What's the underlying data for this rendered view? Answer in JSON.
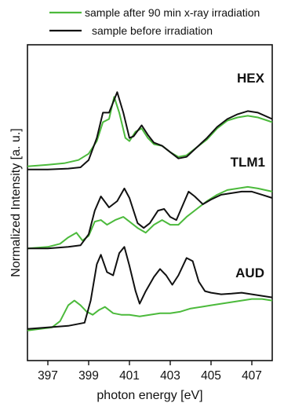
{
  "legend": [
    {
      "label": "sample after 90 min x-ray irradiation",
      "color": "#4cba3c"
    },
    {
      "label": "sample before irradiation",
      "color": "#111111"
    }
  ],
  "chart_data": {
    "type": "line",
    "title": "",
    "xlabel": "photon energy [eV]",
    "ylabel": "Normalized Intensity [a. u.]",
    "xlim": [
      396.0,
      408.0
    ],
    "xticks": [
      397,
      399,
      401,
      403,
      405,
      407
    ],
    "ylim": [
      0,
      10
    ],
    "yticks_shown": false,
    "panels": [
      {
        "name": "HEX",
        "series": [
          {
            "name": "sample after 90 min x-ray irradiation",
            "color": "#4cba3c",
            "points": [
              [
                396.0,
                6.15
              ],
              [
                397.0,
                6.2
              ],
              [
                397.8,
                6.25
              ],
              [
                398.5,
                6.35
              ],
              [
                399.0,
                6.55
              ],
              [
                399.4,
                6.95
              ],
              [
                399.7,
                7.55
              ],
              [
                400.0,
                7.65
              ],
              [
                400.25,
                8.35
              ],
              [
                400.5,
                7.85
              ],
              [
                400.8,
                7.05
              ],
              [
                401.0,
                6.95
              ],
              [
                401.3,
                7.25
              ],
              [
                401.6,
                7.35
              ],
              [
                401.9,
                7.05
              ],
              [
                402.2,
                6.85
              ],
              [
                402.6,
                6.8
              ],
              [
                403.0,
                6.6
              ],
              [
                403.4,
                6.45
              ],
              [
                403.8,
                6.5
              ],
              [
                404.3,
                6.75
              ],
              [
                404.8,
                7.0
              ],
              [
                405.3,
                7.35
              ],
              [
                405.8,
                7.6
              ],
              [
                406.3,
                7.7
              ],
              [
                406.8,
                7.75
              ],
              [
                407.3,
                7.7
              ],
              [
                408.0,
                7.55
              ]
            ]
          },
          {
            "name": "sample before irradiation",
            "color": "#111111",
            "points": [
              [
                396.0,
                6.05
              ],
              [
                397.0,
                6.05
              ],
              [
                398.0,
                6.08
              ],
              [
                398.6,
                6.12
              ],
              [
                399.0,
                6.35
              ],
              [
                399.4,
                7.05
              ],
              [
                399.7,
                7.85
              ],
              [
                400.0,
                7.85
              ],
              [
                400.4,
                8.5
              ],
              [
                400.7,
                7.85
              ],
              [
                401.0,
                7.05
              ],
              [
                401.2,
                7.1
              ],
              [
                401.6,
                7.45
              ],
              [
                401.9,
                7.15
              ],
              [
                402.2,
                6.9
              ],
              [
                402.6,
                6.8
              ],
              [
                403.0,
                6.6
              ],
              [
                403.4,
                6.4
              ],
              [
                403.8,
                6.45
              ],
              [
                404.3,
                6.75
              ],
              [
                404.8,
                7.05
              ],
              [
                405.3,
                7.4
              ],
              [
                405.8,
                7.65
              ],
              [
                406.3,
                7.8
              ],
              [
                406.8,
                7.9
              ],
              [
                407.3,
                7.85
              ],
              [
                408.0,
                7.65
              ]
            ]
          }
        ]
      },
      {
        "name": "TLM1",
        "series": [
          {
            "name": "sample after 90 min x-ray irradiation",
            "color": "#4cba3c",
            "points": [
              [
                396.0,
                3.55
              ],
              [
                397.0,
                3.6
              ],
              [
                397.6,
                3.7
              ],
              [
                398.0,
                3.9
              ],
              [
                398.4,
                4.05
              ],
              [
                398.7,
                3.8
              ],
              [
                399.0,
                3.95
              ],
              [
                399.3,
                4.4
              ],
              [
                399.6,
                4.45
              ],
              [
                399.9,
                4.3
              ],
              [
                400.3,
                4.45
              ],
              [
                400.7,
                4.55
              ],
              [
                401.0,
                4.4
              ],
              [
                401.4,
                4.2
              ],
              [
                401.8,
                4.05
              ],
              [
                402.2,
                4.3
              ],
              [
                402.6,
                4.45
              ],
              [
                403.0,
                4.3
              ],
              [
                403.4,
                4.3
              ],
              [
                403.8,
                4.55
              ],
              [
                404.3,
                4.8
              ],
              [
                404.8,
                5.05
              ],
              [
                405.3,
                5.25
              ],
              [
                405.8,
                5.4
              ],
              [
                406.3,
                5.45
              ],
              [
                406.8,
                5.5
              ],
              [
                407.3,
                5.45
              ],
              [
                408.0,
                5.35
              ]
            ]
          },
          {
            "name": "sample before irradiation",
            "color": "#111111",
            "points": [
              [
                396.0,
                3.55
              ],
              [
                397.0,
                3.55
              ],
              [
                398.0,
                3.6
              ],
              [
                398.6,
                3.65
              ],
              [
                399.0,
                4.0
              ],
              [
                399.3,
                4.75
              ],
              [
                399.6,
                5.2
              ],
              [
                400.0,
                4.85
              ],
              [
                400.4,
                5.05
              ],
              [
                400.75,
                5.45
              ],
              [
                401.0,
                5.15
              ],
              [
                401.4,
                4.35
              ],
              [
                401.7,
                4.2
              ],
              [
                402.0,
                4.35
              ],
              [
                402.4,
                4.75
              ],
              [
                402.7,
                4.8
              ],
              [
                403.0,
                4.55
              ],
              [
                403.3,
                4.45
              ],
              [
                403.6,
                4.9
              ],
              [
                403.9,
                5.35
              ],
              [
                404.2,
                5.2
              ],
              [
                404.6,
                4.95
              ],
              [
                405.0,
                5.1
              ],
              [
                405.5,
                5.25
              ],
              [
                406.0,
                5.3
              ],
              [
                406.5,
                5.35
              ],
              [
                407.0,
                5.35
              ],
              [
                407.5,
                5.25
              ],
              [
                408.0,
                5.15
              ]
            ]
          }
        ]
      },
      {
        "name": "AUD",
        "series": [
          {
            "name": "sample after 90 min x-ray irradiation",
            "color": "#4cba3c",
            "points": [
              [
                396.0,
                0.95
              ],
              [
                396.6,
                1.0
              ],
              [
                397.2,
                1.05
              ],
              [
                397.6,
                1.25
              ],
              [
                398.0,
                1.75
              ],
              [
                398.3,
                1.9
              ],
              [
                398.6,
                1.75
              ],
              [
                398.9,
                1.55
              ],
              [
                399.2,
                1.45
              ],
              [
                399.5,
                1.6
              ],
              [
                399.8,
                1.7
              ],
              [
                400.2,
                1.5
              ],
              [
                400.6,
                1.45
              ],
              [
                401.0,
                1.45
              ],
              [
                401.5,
                1.4
              ],
              [
                402.0,
                1.45
              ],
              [
                402.5,
                1.5
              ],
              [
                403.0,
                1.5
              ],
              [
                403.5,
                1.55
              ],
              [
                404.0,
                1.65
              ],
              [
                404.5,
                1.7
              ],
              [
                405.0,
                1.75
              ],
              [
                405.5,
                1.8
              ],
              [
                406.0,
                1.85
              ],
              [
                406.5,
                1.9
              ],
              [
                407.0,
                1.95
              ],
              [
                407.5,
                1.95
              ],
              [
                408.0,
                1.9
              ]
            ]
          },
          {
            "name": "sample before irradiation",
            "color": "#111111",
            "points": [
              [
                396.0,
                1.0
              ],
              [
                397.0,
                1.05
              ],
              [
                398.0,
                1.1
              ],
              [
                398.8,
                1.2
              ],
              [
                399.1,
                1.9
              ],
              [
                399.4,
                3.05
              ],
              [
                399.6,
                3.35
              ],
              [
                399.9,
                2.8
              ],
              [
                400.2,
                2.7
              ],
              [
                400.5,
                3.4
              ],
              [
                400.75,
                3.6
              ],
              [
                401.0,
                3.0
              ],
              [
                401.3,
                2.2
              ],
              [
                401.5,
                1.8
              ],
              [
                401.8,
                2.2
              ],
              [
                402.2,
                2.65
              ],
              [
                402.5,
                2.9
              ],
              [
                402.8,
                2.7
              ],
              [
                403.1,
                2.4
              ],
              [
                403.4,
                2.7
              ],
              [
                403.8,
                3.25
              ],
              [
                404.1,
                3.15
              ],
              [
                404.4,
                2.5
              ],
              [
                404.7,
                2.2
              ],
              [
                405.0,
                2.15
              ],
              [
                405.5,
                2.1
              ],
              [
                406.0,
                2.12
              ],
              [
                406.5,
                2.15
              ],
              [
                407.0,
                2.1
              ],
              [
                407.5,
                2.05
              ],
              [
                408.0,
                2.0
              ]
            ]
          }
        ]
      }
    ]
  }
}
